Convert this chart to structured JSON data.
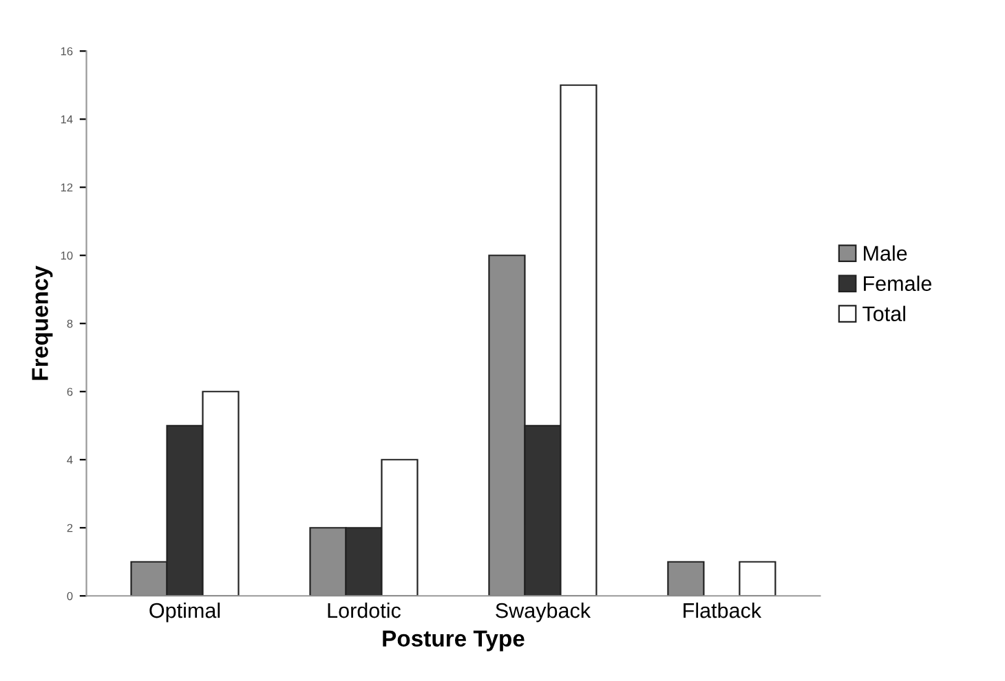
{
  "chart_data": {
    "type": "bar",
    "xlabel": "Posture Type",
    "ylabel": "Frequency",
    "categories": [
      "Optimal",
      "Lordotic",
      "Swayback",
      "Flatback"
    ],
    "series": [
      {
        "name": "Male",
        "color": "#8c8c8c",
        "values": [
          1,
          2,
          10,
          1
        ]
      },
      {
        "name": "Female",
        "color": "#333333",
        "values": [
          5,
          2,
          5,
          null
        ]
      },
      {
        "name": "Total",
        "color": "#ffffff",
        "values": [
          6,
          4,
          15,
          1
        ]
      }
    ],
    "ylim": [
      0,
      16
    ],
    "yticks": [
      0,
      2,
      4,
      6,
      8,
      10,
      12,
      14,
      16
    ],
    "grid": false,
    "legend": "right"
  }
}
